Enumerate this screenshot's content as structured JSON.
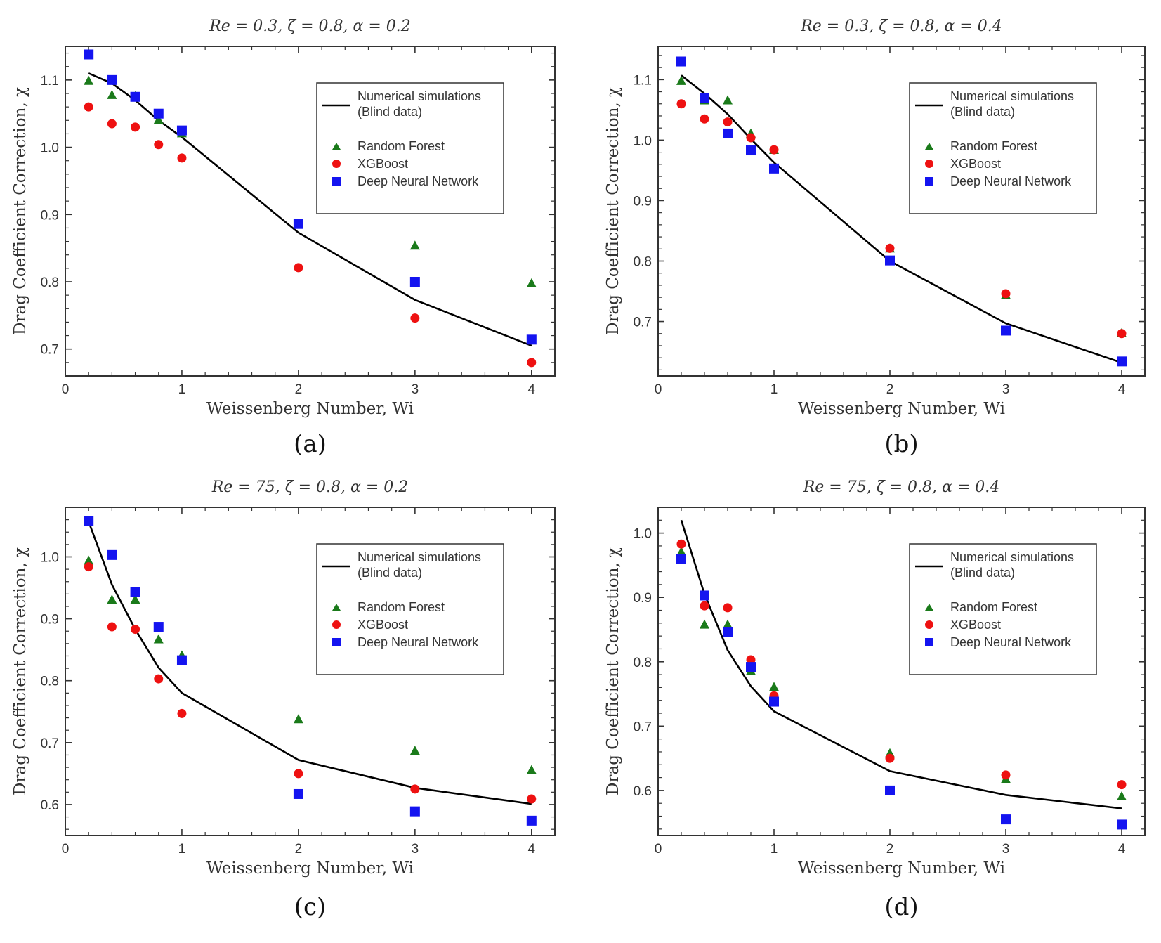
{
  "colors": {
    "numerical": "#000000",
    "random_forest": "#1a7a1a",
    "xgboost": "#ee1111",
    "dnn": "#1414f0"
  },
  "chart_data": [
    {
      "type": "scatter",
      "caption": "(a)",
      "title": "Re = 0.3,  ζ = 0.8,  α = 0.2",
      "xlabel": "Weissenberg Number,  Wi",
      "ylabel": "Drag Coefficient Correction,  χ",
      "xlim": [
        0,
        4.2
      ],
      "ylim": [
        0.66,
        1.15
      ],
      "xticks": [
        0,
        1,
        2,
        3,
        4
      ],
      "yticks": [
        0.7,
        0.8,
        0.9,
        1.0,
        1.1
      ],
      "x": [
        0.2,
        0.4,
        0.6,
        0.8,
        1.0,
        2.0,
        3.0,
        4.0
      ],
      "legend": [
        "Numerical simulations",
        "(Blind data)",
        "Random Forest",
        "XGBoost",
        "Deep Neural Network"
      ],
      "series": [
        {
          "name": "Numerical simulations (Blind data)",
          "style": "line",
          "values": [
            1.11,
            1.095,
            1.07,
            1.04,
            1.015,
            0.873,
            0.773,
            0.705
          ]
        },
        {
          "name": "Random Forest",
          "style": "triangle",
          "values": [
            1.098,
            1.077,
            1.075,
            1.04,
            1.02,
            0.885,
            0.853,
            0.797
          ]
        },
        {
          "name": "XGBoost",
          "style": "circle",
          "values": [
            1.06,
            1.035,
            1.03,
            1.004,
            0.984,
            0.821,
            0.746,
            0.68
          ]
        },
        {
          "name": "Deep Neural Network",
          "style": "square",
          "values": [
            1.138,
            1.1,
            1.075,
            1.05,
            1.025,
            0.886,
            0.8,
            0.714
          ]
        }
      ]
    },
    {
      "type": "scatter",
      "caption": "(b)",
      "title": "Re = 0.3,  ζ = 0.8,  α = 0.4",
      "xlabel": "Weissenberg Number,  Wi",
      "ylabel": "Drag Coefficient Correction,  χ",
      "xlim": [
        0,
        4.2
      ],
      "ylim": [
        0.61,
        1.155
      ],
      "xticks": [
        0,
        1,
        2,
        3,
        4
      ],
      "yticks": [
        0.7,
        0.8,
        0.9,
        1.0,
        1.1
      ],
      "x": [
        0.2,
        0.4,
        0.6,
        0.8,
        1.0,
        2.0,
        3.0,
        4.0
      ],
      "legend": [
        "Numerical simulations",
        "(Blind data)",
        "Random Forest",
        "XGBoost",
        "Deep Neural Network"
      ],
      "series": [
        {
          "name": "Numerical simulations (Blind data)",
          "style": "line",
          "values": [
            1.107,
            1.077,
            1.043,
            1.002,
            0.963,
            0.8,
            0.697,
            0.632
          ]
        },
        {
          "name": "Random Forest",
          "style": "triangle",
          "values": [
            1.097,
            1.065,
            1.065,
            1.01,
            0.983,
            0.82,
            0.743,
            0.68
          ]
        },
        {
          "name": "XGBoost",
          "style": "circle",
          "values": [
            1.06,
            1.035,
            1.03,
            1.004,
            0.984,
            0.821,
            0.746,
            0.68
          ]
        },
        {
          "name": "Deep Neural Network",
          "style": "square",
          "values": [
            1.13,
            1.07,
            1.011,
            0.983,
            0.953,
            0.801,
            0.685,
            0.634
          ]
        }
      ]
    },
    {
      "type": "scatter",
      "caption": "(c)",
      "title": "Re = 75,  ζ = 0.8,  α = 0.2",
      "xlabel": "Weissenberg Number,  Wi",
      "ylabel": "Drag Coefficient Correction,  χ",
      "xlim": [
        0,
        4.2
      ],
      "ylim": [
        0.55,
        1.08
      ],
      "xticks": [
        0,
        1,
        2,
        3,
        4
      ],
      "yticks": [
        0.6,
        0.7,
        0.8,
        0.9,
        1.0
      ],
      "x": [
        0.2,
        0.4,
        0.6,
        0.8,
        1.0,
        2.0,
        3.0,
        4.0
      ],
      "legend": [
        "Numerical simulations",
        "(Blind data)",
        "Random Forest",
        "XGBoost",
        "Deep Neural Network"
      ],
      "series": [
        {
          "name": "Numerical simulations (Blind data)",
          "style": "line",
          "values": [
            1.057,
            0.955,
            0.883,
            0.821,
            0.78,
            0.672,
            0.627,
            0.601
          ]
        },
        {
          "name": "Random Forest",
          "style": "triangle",
          "values": [
            0.993,
            0.93,
            0.93,
            0.866,
            0.84,
            0.737,
            0.686,
            0.655
          ]
        },
        {
          "name": "XGBoost",
          "style": "circle",
          "values": [
            0.984,
            0.887,
            0.883,
            0.803,
            0.747,
            0.65,
            0.625,
            0.609
          ]
        },
        {
          "name": "Deep Neural Network",
          "style": "square",
          "values": [
            1.058,
            1.003,
            0.943,
            0.887,
            0.833,
            0.617,
            0.589,
            0.574
          ]
        }
      ]
    },
    {
      "type": "scatter",
      "caption": "(d)",
      "title": "Re = 75,  ζ = 0.8,  α = 0.4",
      "xlabel": "Weissenberg Number,  Wi",
      "ylabel": "Drag Coefficient Correction,  χ",
      "xlim": [
        0,
        4.2
      ],
      "ylim": [
        0.53,
        1.04
      ],
      "xticks": [
        0,
        1,
        2,
        3,
        4
      ],
      "yticks": [
        0.6,
        0.7,
        0.8,
        0.9,
        1.0
      ],
      "x": [
        0.2,
        0.4,
        0.6,
        0.8,
        1.0,
        2.0,
        3.0,
        4.0
      ],
      "legend": [
        "Numerical simulations",
        "(Blind data)",
        "Random Forest",
        "XGBoost",
        "Deep Neural Network"
      ],
      "series": [
        {
          "name": "Numerical simulations (Blind data)",
          "style": "line",
          "values": [
            1.02,
            0.905,
            0.818,
            0.762,
            0.723,
            0.63,
            0.593,
            0.572
          ]
        },
        {
          "name": "Random Forest",
          "style": "triangle",
          "values": [
            0.97,
            0.857,
            0.857,
            0.785,
            0.76,
            0.657,
            0.617,
            0.59
          ]
        },
        {
          "name": "XGBoost",
          "style": "circle",
          "values": [
            0.983,
            0.887,
            0.884,
            0.803,
            0.747,
            0.65,
            0.624,
            0.609
          ]
        },
        {
          "name": "Deep Neural Network",
          "style": "square",
          "values": [
            0.96,
            0.903,
            0.846,
            0.792,
            0.738,
            0.6,
            0.555,
            0.547
          ]
        }
      ]
    }
  ]
}
